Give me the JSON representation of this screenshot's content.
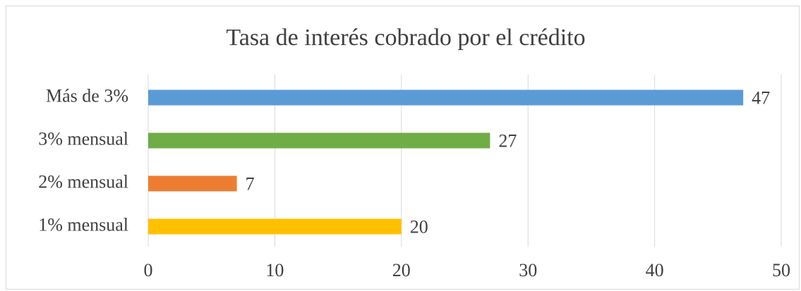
{
  "chart_data": {
    "type": "bar",
    "orientation": "horizontal",
    "title": "Tasa de interés cobrado por el crédito",
    "categories": [
      "Más de 3%",
      "3% mensual",
      "2% mensual",
      "1% mensual"
    ],
    "values": [
      47,
      27,
      7,
      20
    ],
    "colors": [
      "#5b9bd5",
      "#70ad47",
      "#ed7d31",
      "#ffc000"
    ],
    "xlim": [
      0,
      50
    ],
    "xticks": [
      0,
      10,
      20,
      30,
      40,
      50
    ],
    "grid": true
  }
}
